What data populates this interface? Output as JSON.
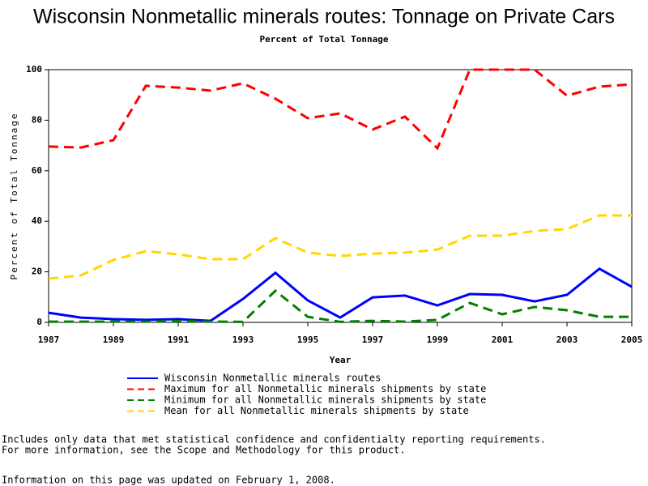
{
  "chart_data": {
    "type": "line",
    "title": "Wisconsin Nonmetallic minerals routes: Tonnage on Private Cars",
    "subtitle": "Percent of Total Tonnage",
    "x_label": "Year",
    "y_label": "Percent of Total Tonnage",
    "x": [
      1987,
      1988,
      1989,
      1990,
      1991,
      1992,
      1993,
      1994,
      1995,
      1996,
      1997,
      1998,
      1999,
      2000,
      2001,
      2002,
      2003,
      2004,
      2005
    ],
    "xlim": [
      1987,
      2005
    ],
    "xticks": [
      1987,
      1989,
      1991,
      1993,
      1995,
      1997,
      1999,
      2001,
      2003,
      2005
    ],
    "ylim": [
      0,
      100
    ],
    "yticks": [
      0,
      20,
      40,
      60,
      80,
      100
    ],
    "series": [
      {
        "name": "Wisconsin Nonmetallic minerals routes",
        "color": "#0000ff",
        "style": "solid",
        "values": [
          3.8,
          1.9,
          1.3,
          1,
          1.3,
          0.6,
          9.3,
          19.6,
          8.7,
          1.9,
          9.9,
          10.6,
          6.7,
          11.2,
          10.9,
          8.3,
          10.9,
          21.2,
          14.1
        ]
      },
      {
        "name": "Maximum for all Nonmetallic minerals shipments by state",
        "color": "#ff0000",
        "style": "dashed",
        "values": [
          69.6,
          69.2,
          72.1,
          93.6,
          92.9,
          91.7,
          94.6,
          88.5,
          80.8,
          82.7,
          76.3,
          81.4,
          68.9,
          100,
          100,
          100,
          89.7,
          93.3,
          94.2
        ]
      },
      {
        "name": "Minimum for all Nonmetallic minerals shipments by state",
        "color": "#008000",
        "style": "dashed",
        "values": [
          0.3,
          0.3,
          0.3,
          0.3,
          0.5,
          0.3,
          0.2,
          12.5,
          2.2,
          0.2,
          0.6,
          0.3,
          1,
          7.7,
          3.2,
          6.1,
          4.8,
          2.2,
          2.2
        ]
      },
      {
        "name": "Mean for all Nonmetallic minerals shipments by state",
        "color": "#ffd700",
        "style": "dashed",
        "values": [
          17.3,
          18.6,
          24.7,
          28.2,
          26.9,
          25,
          25,
          33.3,
          27.6,
          26.3,
          27.2,
          27.6,
          28.8,
          34.3,
          34.3,
          36.2,
          36.9,
          42.3,
          42.3
        ]
      }
    ]
  },
  "notes": [
    "Includes only data that met statistical confidence and confidentialty reporting requirements.",
    "For more information, see the Scope and Methodology for this product.",
    "Information on this page was updated on February 1, 2008."
  ]
}
